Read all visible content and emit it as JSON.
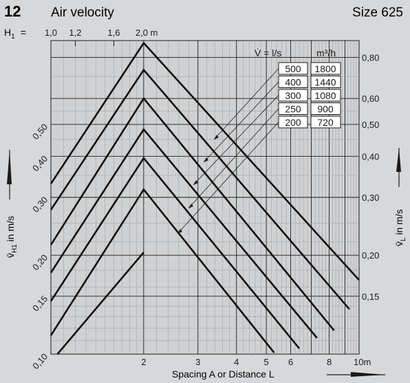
{
  "header": {
    "number": "12",
    "title": "Air velocity",
    "size": "Size 625",
    "h1_label": "H",
    "h1_sub": "1",
    "h1_eq": "=",
    "h1_ticks": [
      "1,0",
      "1,2",
      "1,6",
      "2,0 m"
    ]
  },
  "chart_data": {
    "type": "line",
    "x_scale": "log",
    "y_scale": "log",
    "xlim": [
      1,
      10
    ],
    "ylim": [
      0.1,
      0.9
    ],
    "grid": true,
    "xlabel": "Spacing A or Distance L",
    "ylabel_left": {
      "symbol": "v̄",
      "sub": "H1",
      "text": " in m/s"
    },
    "ylabel_right": {
      "symbol": "v̄",
      "sub": "L",
      "text": " in m/s"
    },
    "x_ticks": [
      {
        "value": 2,
        "label": "2"
      },
      {
        "value": 3,
        "label": "3"
      },
      {
        "value": 4,
        "label": "4"
      },
      {
        "value": 5,
        "label": "5"
      },
      {
        "value": 6,
        "label": "6"
      },
      {
        "value": 8,
        "label": "8"
      },
      {
        "value": 10,
        "label": "10m"
      }
    ],
    "left_ticks": [
      {
        "value": 0.1,
        "label": "0,10"
      },
      {
        "value": 0.15,
        "label": "0,15"
      },
      {
        "value": 0.2,
        "label": "0,20"
      },
      {
        "value": 0.3,
        "label": "0,30"
      },
      {
        "value": 0.4,
        "label": "0,40"
      },
      {
        "value": 0.5,
        "label": "0,50"
      }
    ],
    "right_ticks": [
      {
        "value": 0.15,
        "label": "0,15"
      },
      {
        "value": 0.2,
        "label": "0,20"
      },
      {
        "value": 0.3,
        "label": "0,30"
      },
      {
        "value": 0.4,
        "label": "0,40"
      },
      {
        "value": 0.5,
        "label": "0,50"
      },
      {
        "value": 0.6,
        "label": "0,60"
      },
      {
        "value": 0.8,
        "label": "0,80"
      }
    ],
    "table": {
      "header_ls": "V̇  =  l/s",
      "header_m3": "m³/h",
      "rows": [
        {
          "ls": "500",
          "m3h": "1800"
        },
        {
          "ls": "400",
          "m3h": "1440"
        },
        {
          "ls": "300",
          "m3h": "1080"
        },
        {
          "ls": "250",
          "m3h": "900"
        },
        {
          "ls": "200",
          "m3h": "720"
        }
      ]
    },
    "series": [
      {
        "points": [
          [
            1.05,
            0.1
          ],
          [
            2,
            0.204
          ]
        ]
      },
      {
        "points": [
          [
            1.0,
            0.114
          ],
          [
            2,
            0.317
          ],
          [
            5.3,
            0.101
          ]
        ]
      },
      {
        "points": [
          [
            1.0,
            0.145
          ],
          [
            2,
            0.395
          ],
          [
            6.4,
            0.104
          ]
        ]
      },
      {
        "points": [
          [
            1.0,
            0.177
          ],
          [
            2,
            0.483
          ],
          [
            7.3,
            0.112
          ]
        ]
      },
      {
        "points": [
          [
            1.0,
            0.215
          ],
          [
            2,
            0.6
          ],
          [
            8.3,
            0.118
          ]
        ]
      },
      {
        "points": [
          [
            1.0,
            0.275
          ],
          [
            2,
            0.733
          ],
          [
            9.3,
            0.137
          ]
        ]
      },
      {
        "points": [
          [
            1.0,
            0.33
          ],
          [
            2,
            0.885
          ],
          [
            10,
            0.168
          ]
        ]
      }
    ]
  }
}
